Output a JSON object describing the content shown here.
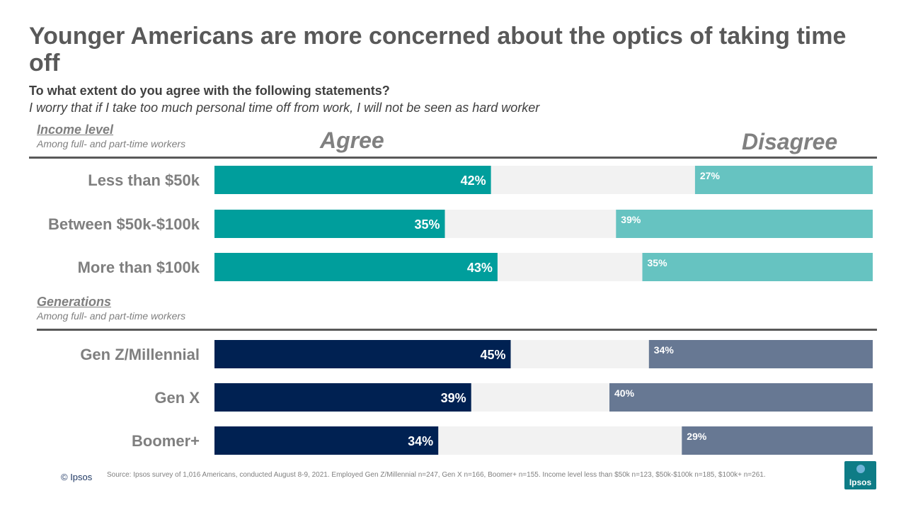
{
  "title": "Younger Americans are more concerned about the optics of taking time off",
  "question": "To what extent do you agree with the following statements?",
  "statement": "I worry that if I take too much personal time off from work, I will not be seen as hard worker",
  "sections": {
    "income": {
      "name": "Income level",
      "sub": "Among full- and part-time workers"
    },
    "generations": {
      "name": "Generations",
      "sub": "Among full- and part-time workers"
    }
  },
  "column_headers": {
    "agree": "Agree",
    "disagree": "Disagree"
  },
  "colors": {
    "income_agree": "#009e9c",
    "income_disagree": "#66c3c1",
    "gen_agree": "#002152",
    "gen_disagree": "#677893",
    "background_bar": "#f2f2f2"
  },
  "chart_data": {
    "type": "bar",
    "orientation": "horizontal",
    "title": "Younger Americans are more concerned about the optics of taking time off",
    "series": [
      {
        "name": "Agree",
        "values": [
          42,
          35,
          43,
          45,
          39,
          34
        ],
        "labels": [
          "42%",
          "35%",
          "43%",
          "45%",
          "39%",
          "34%"
        ]
      },
      {
        "name": "Disagree",
        "values": [
          27,
          39,
          35,
          34,
          40,
          29
        ],
        "labels": [
          "27%",
          "39%",
          "35%",
          "34%",
          "40%",
          "29%"
        ]
      }
    ],
    "categories": [
      "Less than $50k",
      "Between $50k-$100k",
      "More than $100k",
      "Gen Z/Millennial",
      "Gen X",
      "Boomer+"
    ],
    "groups": [
      "income",
      "income",
      "income",
      "generations",
      "generations",
      "generations"
    ],
    "xlim": [
      0,
      100
    ]
  },
  "footer": {
    "copyright": "© Ipsos",
    "source": "Source: Ipsos survey of 1,016 Americans, conducted August 8-9, 2021. Employed Gen Z/Millennial n=247, Gen X n=166, Boomer+ n=155. Income level less than $50k n=123, $50k-$100k n=185, $100k+ n=261.",
    "logo_text": "Ipsos"
  }
}
